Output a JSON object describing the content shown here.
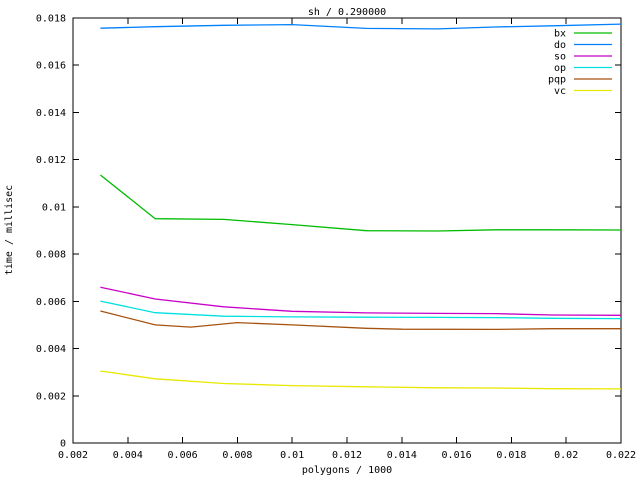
{
  "title": "sh / 0.290000",
  "chart_data": {
    "type": "line",
    "title": "sh / 0.290000",
    "xlabel": "polygons / 1000",
    "ylabel": "time / millisec",
    "xlim": [
      0.002,
      0.022
    ],
    "ylim": [
      0,
      0.018
    ],
    "xticks": [
      0.002,
      0.004,
      0.006,
      0.008,
      0.01,
      0.012,
      0.014,
      0.016,
      0.018,
      0.02,
      0.022
    ],
    "yticks": [
      0,
      0.002,
      0.004,
      0.006,
      0.008,
      0.01,
      0.012,
      0.014,
      0.016,
      0.018
    ],
    "grid": false,
    "legend_position": "top-right",
    "background_color": "#ffffff",
    "axis_color": "#000000",
    "series": [
      {
        "name": "bx",
        "color": "#00bc00",
        "x": [
          0.003,
          0.005,
          0.0075,
          0.01,
          0.0127,
          0.0153,
          0.0174,
          0.0195,
          0.022
        ],
        "y": [
          0.01135,
          0.0095,
          0.00947,
          0.00925,
          0.00899,
          0.00898,
          0.00903,
          0.00903,
          0.00902
        ]
      },
      {
        "name": "do",
        "color": "#0080ff",
        "x": [
          0.003,
          0.005,
          0.0075,
          0.01,
          0.0127,
          0.0153,
          0.0174,
          0.0195,
          0.022
        ],
        "y": [
          0.01757,
          0.01763,
          0.01769,
          0.01772,
          0.01756,
          0.01754,
          0.01762,
          0.01767,
          0.01774
        ]
      },
      {
        "name": "so",
        "color": "#c800c8",
        "x": [
          0.003,
          0.005,
          0.0075,
          0.01,
          0.0127,
          0.0153,
          0.0174,
          0.0195,
          0.022
        ],
        "y": [
          0.0066,
          0.0061,
          0.00577,
          0.00558,
          0.00551,
          0.00549,
          0.00548,
          0.00542,
          0.00541
        ]
      },
      {
        "name": "op",
        "color": "#00e0e0",
        "x": [
          0.003,
          0.005,
          0.0075,
          0.01,
          0.0127,
          0.0153,
          0.0174,
          0.0195,
          0.022
        ],
        "y": [
          0.00601,
          0.00552,
          0.00537,
          0.00534,
          0.00533,
          0.00532,
          0.00531,
          0.00528,
          0.00527
        ]
      },
      {
        "name": "pqp",
        "color": "#a6520e",
        "x": [
          0.003,
          0.005,
          0.0063,
          0.008,
          0.01,
          0.0127,
          0.014,
          0.0174,
          0.0195,
          0.022
        ],
        "y": [
          0.00559,
          0.005,
          0.00491,
          0.0051,
          0.005,
          0.00486,
          0.00482,
          0.00481,
          0.00484,
          0.00484
        ]
      },
      {
        "name": "vc",
        "color": "#e8e800",
        "x": [
          0.003,
          0.005,
          0.0075,
          0.01,
          0.0127,
          0.0153,
          0.0174,
          0.0195,
          0.022
        ],
        "y": [
          0.00305,
          0.00272,
          0.00252,
          0.00243,
          0.00238,
          0.00234,
          0.00233,
          0.0023,
          0.00229
        ]
      }
    ]
  }
}
